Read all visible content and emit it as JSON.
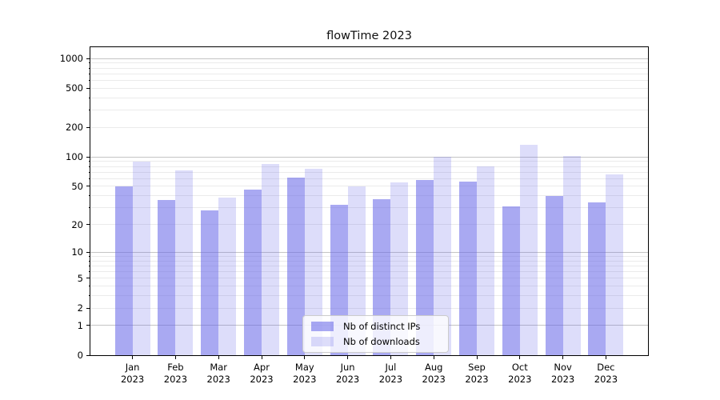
{
  "title": "flowTime 2023",
  "colors": {
    "grid_major": "#c4c4c4",
    "grid_minor": "#ebebeb",
    "axis": "#000000",
    "legend_border": "#cccccc",
    "legend_bg": "rgba(255,255,255,0.8)"
  },
  "chart_data": {
    "type": "bar",
    "title": "flowTime 2023",
    "categories": [
      "Jan",
      "Feb",
      "Mar",
      "Apr",
      "May",
      "Jun",
      "Jul",
      "Aug",
      "Sep",
      "Oct",
      "Nov",
      "Dec"
    ],
    "year_label": "2023",
    "series": [
      {
        "name": "Nb of distinct IPs",
        "color": "rgba(102,102,232,0.56)",
        "values": [
          50,
          36,
          28,
          46,
          62,
          32,
          37,
          58,
          56,
          31,
          40,
          34
        ]
      },
      {
        "name": "Nb of downloads",
        "color": "rgba(102,102,232,0.22)",
        "values": [
          90,
          73,
          38,
          84,
          76,
          50,
          55,
          101,
          80,
          133,
          102,
          66
        ]
      }
    ],
    "yscale": "symlog",
    "yticks": [
      0,
      1,
      2,
      5,
      10,
      20,
      50,
      100,
      200,
      500,
      1000
    ],
    "ylim": [
      0,
      1300
    ],
    "xlabel": "",
    "ylabel": "",
    "grid": true,
    "legend_position": "lower center"
  }
}
